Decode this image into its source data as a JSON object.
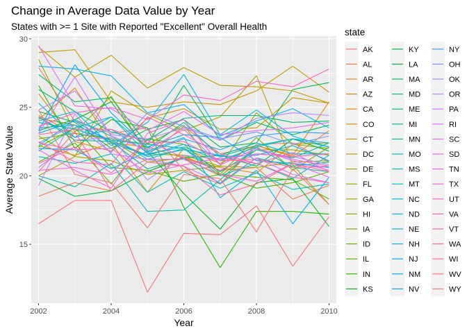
{
  "chart_data": {
    "type": "line",
    "title": "Change in Average Data Value by Year",
    "subtitle": "States with >= 1 Site with Reported \"Excellent\" Overall Health",
    "xlabel": "Year",
    "ylabel": "Average State Value",
    "xlim": [
      2001.8,
      2010.2
    ],
    "ylim": [
      10.7,
      30.2
    ],
    "x_ticks": [
      2002,
      2004,
      2006,
      2008,
      2010
    ],
    "y_ticks": [
      15,
      20,
      25,
      30
    ],
    "grid": true,
    "legend_position": "right",
    "legend_title": "state",
    "x": [
      2002,
      2003,
      2004,
      2005,
      2006,
      2007,
      2008,
      2009,
      2010
    ],
    "series": [
      {
        "name": "AK",
        "color": "#F8766D",
        "values": [
          27.9,
          24.0,
          23.1,
          23.5,
          20.4,
          19.4,
          22.3,
          22.4,
          21.0
        ]
      },
      {
        "name": "AL",
        "color": "#F27D52",
        "values": [
          18.5,
          19.5,
          18.9,
          20.3,
          21.4,
          20.4,
          20.6,
          18.3,
          19.3
        ]
      },
      {
        "name": "AR",
        "color": "#EA8331",
        "values": [
          24.4,
          23.1,
          22.6,
          21.5,
          23.6,
          21.6,
          22.2,
          21.4,
          23.3
        ]
      },
      {
        "name": "AZ",
        "color": "#E38900",
        "values": [
          24.1,
          26.4,
          22.4,
          18.8,
          22.0,
          20.9,
          22.2,
          21.5,
          25.4
        ]
      },
      {
        "name": "CA",
        "color": "#DB8E00",
        "values": [
          22.2,
          21.5,
          22.4,
          22.1,
          21.3,
          20.6,
          20.2,
          22.3,
          22.4
        ]
      },
      {
        "name": "CO",
        "color": "#D29300",
        "values": [
          26.0,
          22.5,
          21.8,
          24.2,
          24.9,
          23.4,
          23.5,
          25.7,
          25.3
        ]
      },
      {
        "name": "CT",
        "color": "#C99800",
        "values": [
          29.0,
          29.2,
          25.4,
          25.0,
          25.4,
          25.2,
          26.2,
          28.0,
          26.1
        ]
      },
      {
        "name": "DC",
        "color": "#BE9C00",
        "values": [
          29.4,
          27.2,
          28.8,
          26.4,
          27.9,
          26.6,
          26.5,
          26.2,
          25.3
        ]
      },
      {
        "name": "DE",
        "color": "#B3A000",
        "values": [
          20.0,
          21.4,
          26.2,
          24.5,
          23.3,
          24.3,
          27.3,
          20.8,
          17.9
        ]
      },
      {
        "name": "FL",
        "color": "#A7A300",
        "values": [
          22.9,
          21.4,
          21.1,
          20.1,
          20.4,
          20.7,
          20.6,
          21.0,
          21.1
        ]
      },
      {
        "name": "GA",
        "color": "#9AA600",
        "values": [
          24.2,
          23.7,
          22.6,
          21.0,
          21.3,
          20.0,
          21.9,
          21.9,
          21.5
        ]
      },
      {
        "name": "HI",
        "color": "#8BAB00",
        "values": [
          28.5,
          23.2,
          25.8,
          21.6,
          21.5,
          20.7,
          24.6,
          22.3,
          22.0
        ]
      },
      {
        "name": "IA",
        "color": "#7CAE00",
        "values": [
          22.7,
          23.1,
          22.7,
          22.3,
          23.7,
          20.1,
          22.8,
          20.4,
          22.1
        ]
      },
      {
        "name": "ID",
        "color": "#68B100",
        "values": [
          21.0,
          22.4,
          19.4,
          22.7,
          22.3,
          20.1,
          19.9,
          19.7,
          18.3
        ]
      },
      {
        "name": "IL",
        "color": "#4FB400",
        "values": [
          22.1,
          23.5,
          20.6,
          20.4,
          19.6,
          20.1,
          19.1,
          19.5,
          20.3
        ]
      },
      {
        "name": "IN",
        "color": "#2AB600",
        "values": [
          26.6,
          22.0,
          24.1,
          23.5,
          17.7,
          13.3,
          17.4,
          17.4,
          17.2
        ]
      },
      {
        "name": "KS",
        "color": "#00B81F",
        "values": [
          23.3,
          24.1,
          25.4,
          21.8,
          18.7,
          16.1,
          19.5,
          19.8,
          16.3
        ]
      },
      {
        "name": "KY",
        "color": "#00BA38",
        "values": [
          19.8,
          18.5,
          18.9,
          20.3,
          21.3,
          21.5,
          20.7,
          22.7,
          21.8
        ]
      },
      {
        "name": "LA",
        "color": "#00BB4E",
        "values": [
          24.7,
          23.9,
          22.0,
          23.4,
          24.1,
          22.1,
          22.4,
          26.3,
          26.8
        ]
      },
      {
        "name": "MA",
        "color": "#00BC5F",
        "values": [
          27.4,
          25.4,
          25.7,
          22.3,
          26.6,
          22.6,
          23.9,
          23.0,
          23.7
        ]
      },
      {
        "name": "MD",
        "color": "#00BD70",
        "values": [
          26.3,
          24.7,
          23.2,
          22.6,
          24.2,
          24.4,
          24.4,
          23.9,
          24.0
        ]
      },
      {
        "name": "ME",
        "color": "#00BE81",
        "values": [
          24.3,
          22.6,
          22.5,
          20.5,
          21.3,
          19.4,
          21.3,
          20.7,
          21.0
        ]
      },
      {
        "name": "MI",
        "color": "#00BF90",
        "values": [
          23.9,
          23.4,
          22.6,
          22.3,
          22.0,
          20.3,
          21.9,
          21.3,
          22.4
        ]
      },
      {
        "name": "MN",
        "color": "#00C09F",
        "values": [
          21.8,
          23.5,
          24.3,
          22.0,
          23.9,
          21.4,
          22.2,
          22.7,
          22.1
        ]
      },
      {
        "name": "MO",
        "color": "#00C0AD",
        "values": [
          20.0,
          19.2,
          20.9,
          17.4,
          17.5,
          19.7,
          22.1,
          20.6,
          20.3
        ]
      },
      {
        "name": "MS",
        "color": "#00C0BA",
        "values": [
          21.4,
          20.9,
          21.6,
          18.8,
          20.3,
          19.1,
          20.2,
          19.0,
          19.4
        ]
      },
      {
        "name": "MT",
        "color": "#00BFC6",
        "values": [
          22.2,
          24.1,
          22.9,
          21.2,
          22.0,
          20.0,
          20.9,
          19.8,
          21.5
        ]
      },
      {
        "name": "NC",
        "color": "#00BDD1",
        "values": [
          23.5,
          23.7,
          22.6,
          21.4,
          21.9,
          21.5,
          22.4,
          21.6,
          21.6
        ]
      },
      {
        "name": "ND",
        "color": "#00BBDC",
        "values": [
          25.3,
          22.8,
          24.3,
          21.6,
          22.1,
          21.1,
          22.1,
          22.7,
          22.4
        ]
      },
      {
        "name": "NE",
        "color": "#00B8E5",
        "values": [
          24.0,
          24.7,
          22.2,
          23.9,
          27.4,
          23.0,
          24.8,
          22.9,
          22.1
        ]
      },
      {
        "name": "NH",
        "color": "#00B4EF",
        "values": [
          28.0,
          27.8,
          27.3,
          24.6,
          25.2,
          22.9,
          24.0,
          24.9,
          23.5
        ]
      },
      {
        "name": "NJ",
        "color": "#00B0F6",
        "values": [
          22.0,
          21.9,
          20.5,
          21.8,
          22.8,
          18.4,
          20.4,
          16.5,
          19.9
        ]
      },
      {
        "name": "NM",
        "color": "#00ABFD",
        "values": [
          23.1,
          24.0,
          22.4,
          21.5,
          22.3,
          21.4,
          21.5,
          22.2,
          21.1
        ]
      },
      {
        "name": "NV",
        "color": "#00A5FF",
        "values": [
          23.3,
          28.1,
          24.6,
          22.1,
          23.0,
          22.8,
          21.1,
          20.9,
          20.6
        ]
      },
      {
        "name": "NY",
        "color": "#2C9FFF",
        "values": [
          24.3,
          22.8,
          23.4,
          21.7,
          22.7,
          21.9,
          22.9,
          23.2,
          23.1
        ]
      },
      {
        "name": "OH",
        "color": "#7F96FF",
        "values": [
          22.4,
          23.7,
          21.7,
          24.6,
          23.6,
          22.7,
          23.2,
          22.3,
          22.9
        ]
      },
      {
        "name": "OK",
        "color": "#9F8CFF",
        "values": [
          20.6,
          22.6,
          22.8,
          19.7,
          21.5,
          21.2,
          21.6,
          21.4,
          20.8
        ]
      },
      {
        "name": "OR",
        "color": "#B983FF",
        "values": [
          24.8,
          26.2,
          23.0,
          22.7,
          23.5,
          22.6,
          24.2,
          24.6,
          24.4
        ]
      },
      {
        "name": "PA",
        "color": "#CD79FF",
        "values": [
          19.3,
          24.5,
          21.6,
          21.2,
          20.7,
          19.5,
          21.3,
          20.1,
          19.5
        ]
      },
      {
        "name": "RI",
        "color": "#DC71FA",
        "values": [
          23.1,
          27.2,
          22.9,
          21.9,
          23.4,
          20.8,
          22.0,
          21.1,
          20.4
        ]
      },
      {
        "name": "SC",
        "color": "#E76BF3",
        "values": [
          29.5,
          25.1,
          24.9,
          23.3,
          24.7,
          23.0,
          23.3,
          23.5,
          23.9
        ]
      },
      {
        "name": "SD",
        "color": "#F066EA",
        "values": [
          21.9,
          20.4,
          19.1,
          23.1,
          24.1,
          20.8,
          22.0,
          21.2,
          20.7
        ]
      },
      {
        "name": "TN",
        "color": "#F763E0",
        "values": [
          22.4,
          21.9,
          22.0,
          20.2,
          20.8,
          21.3,
          20.9,
          21.7,
          20.3
        ]
      },
      {
        "name": "TX",
        "color": "#FC61D5",
        "values": [
          20.4,
          20.6,
          20.1,
          21.2,
          21.2,
          20.1,
          19.6,
          20.9,
          19.9
        ]
      },
      {
        "name": "UT",
        "color": "#FF61C9",
        "values": [
          23.6,
          24.6,
          25.0,
          24.1,
          25.9,
          25.5,
          26.9,
          26.5,
          27.8
        ]
      },
      {
        "name": "VA",
        "color": "#FF62BC",
        "values": [
          20.9,
          22.1,
          20.2,
          22.6,
          21.3,
          20.4,
          21.6,
          21.4,
          21.6
        ]
      },
      {
        "name": "VT",
        "color": "#FF65AE",
        "values": [
          22.5,
          21.0,
          20.8,
          24.3,
          23.0,
          21.6,
          20.9,
          19.9,
          19.5
        ]
      },
      {
        "name": "WA",
        "color": "#FF689F",
        "values": [
          23.0,
          23.4,
          23.4,
          22.4,
          22.5,
          21.1,
          21.2,
          20.6,
          20.7
        ]
      },
      {
        "name": "WI",
        "color": "#FF6C90",
        "values": [
          20.3,
          23.2,
          18.9,
          21.0,
          20.7,
          18.6,
          19.4,
          20.9,
          20.3
        ]
      },
      {
        "name": "WV",
        "color": "#FC717F",
        "values": [
          16.5,
          18.2,
          18.2,
          11.5,
          15.8,
          15.7,
          17.8,
          13.4,
          17.0
        ]
      },
      {
        "name": "WY",
        "color": "#F8766D",
        "values": [
          24.8,
          20.1,
          19.5,
          16.2,
          20.1,
          19.8,
          15.9,
          20.5,
          17.9
        ]
      }
    ]
  }
}
